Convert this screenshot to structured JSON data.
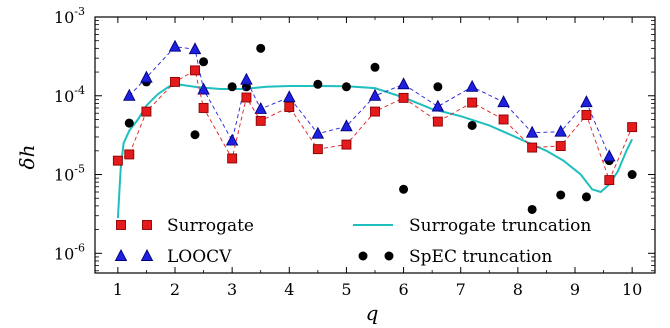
{
  "chart_data": {
    "type": "scatter",
    "xlabel": "q",
    "ylabel": "δh",
    "xlim": [
      0.6,
      10.4
    ],
    "ylim_log10": [
      -6.25,
      -3
    ],
    "y_scale": "log",
    "x_ticks": [
      "1",
      "2",
      "3",
      "4",
      "5",
      "6",
      "7",
      "8",
      "9",
      "10"
    ],
    "y_ticks": [
      {
        "base": "10",
        "exp": "-6",
        "value": 1e-06
      },
      {
        "base": "10",
        "exp": "-5",
        "value": 1e-05
      },
      {
        "base": "10",
        "exp": "-4",
        "value": 0.0001
      },
      {
        "base": "10",
        "exp": "-3",
        "value": 0.001
      }
    ],
    "grid": false,
    "legend_position": "bottom",
    "series": [
      {
        "name": "Surrogate",
        "style": "square-dashed",
        "color": "#e41a1c",
        "edge": "#8b0000",
        "x": [
          1.0,
          1.2,
          1.5,
          2.0,
          2.35,
          2.5,
          3.0,
          3.25,
          3.5,
          4.0,
          4.5,
          5.0,
          5.5,
          6.0,
          6.6,
          7.2,
          7.75,
          8.25,
          8.75,
          9.2,
          9.6,
          10.0
        ],
        "y": [
          1.5e-05,
          1.8e-05,
          6.3e-05,
          0.00015,
          0.00021,
          7e-05,
          1.6e-05,
          9.5e-05,
          4.8e-05,
          7.2e-05,
          2.1e-05,
          2.4e-05,
          6.3e-05,
          9.4e-05,
          4.7e-05,
          8.2e-05,
          5e-05,
          2.2e-05,
          2.3e-05,
          5.7e-05,
          8.5e-06,
          4e-05
        ]
      },
      {
        "name": "LOOCV",
        "style": "triangle-dashed",
        "color": "#1f1fe0",
        "edge": "#00007a",
        "x": [
          1.2,
          1.5,
          2.0,
          2.35,
          2.5,
          3.0,
          3.25,
          3.5,
          4.0,
          4.5,
          5.0,
          5.5,
          6.0,
          6.6,
          7.2,
          7.75,
          8.25,
          8.75,
          9.2,
          9.6
        ],
        "y": [
          0.0001,
          0.00017,
          0.00042,
          0.00039,
          0.00012,
          2.7e-05,
          0.00016,
          6.8e-05,
          9.6e-05,
          3.3e-05,
          4.1e-05,
          0.0001,
          0.00014,
          7.3e-05,
          0.00013,
          8.3e-05,
          3.4e-05,
          3.5e-05,
          8.3e-05,
          1.7e-05
        ]
      },
      {
        "name": "SpEC truncation",
        "style": "circle",
        "color": "#000000",
        "x": [
          1.2,
          1.5,
          2.0,
          2.35,
          2.5,
          3.0,
          3.25,
          3.5,
          4.0,
          4.5,
          5.0,
          5.5,
          6.0,
          6.6,
          7.2,
          7.75,
          8.25,
          8.75,
          9.2,
          9.6,
          10.0
        ],
        "y": [
          4.5e-05,
          0.00015,
          0.00015,
          3.2e-05,
          0.00027,
          0.00013,
          0.00013,
          0.0004,
          7e-05,
          0.00014,
          0.00013,
          0.00023,
          6.5e-06,
          0.00013,
          4.2e-05,
          5e-05,
          3.6e-06,
          5.5e-06,
          5.2e-06,
          1.5e-05,
          1e-05
        ]
      },
      {
        "name": "Surrogate truncation",
        "style": "line",
        "color": "#1fbfbf",
        "x": [
          1.0,
          1.05,
          1.1,
          1.2,
          1.35,
          1.5,
          1.7,
          1.9,
          2.1,
          2.4,
          2.8,
          3.2,
          3.6,
          4.0,
          4.5,
          5.0,
          5.5,
          6.0,
          6.5,
          7.0,
          7.5,
          8.0,
          8.5,
          8.8,
          9.1,
          9.3,
          9.45,
          9.6,
          9.75,
          9.9,
          10.0
        ],
        "y": [
          2.8e-06,
          1.2e-05,
          2.5e-05,
          3.6e-05,
          5e-05,
          7.5e-05,
          0.000105,
          0.000132,
          0.000138,
          0.000128,
          0.000122,
          0.000122,
          0.00013,
          0.000133,
          0.000133,
          0.000132,
          0.000125,
          9.5e-05,
          6.8e-05,
          5.5e-05,
          4.2e-05,
          2.9e-05,
          2e-05,
          1.5e-05,
          1e-05,
          6.5e-06,
          6e-06,
          7.5e-06,
          1.1e-05,
          2e-05,
          2.8e-05
        ]
      }
    ],
    "legend": [
      {
        "label": "Surrogate",
        "series": 0
      },
      {
        "label": "Surrogate truncation",
        "series": 3
      },
      {
        "label": "LOOCV",
        "series": 1
      },
      {
        "label": "SpEC truncation",
        "series": 2
      }
    ]
  }
}
